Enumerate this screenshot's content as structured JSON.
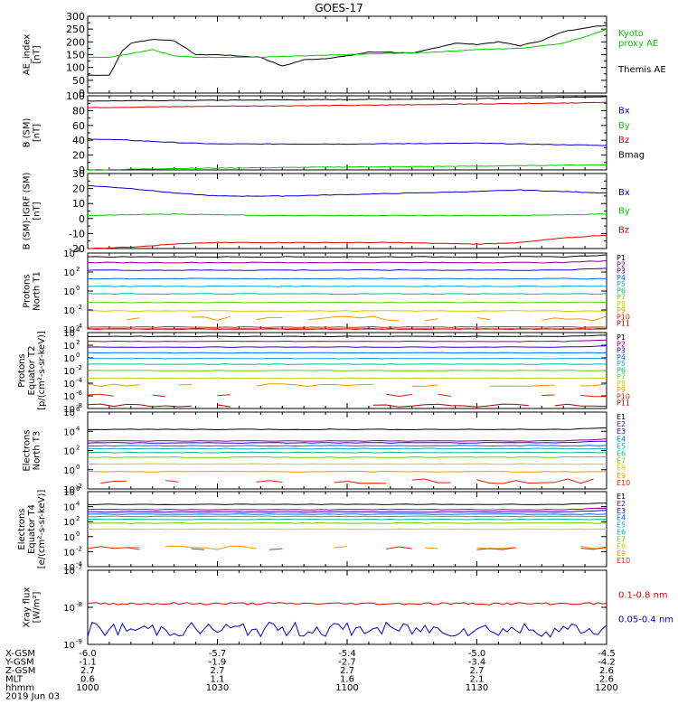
{
  "title": "GOES-17",
  "x_ticks": [
    "1000",
    "1030",
    "1100",
    "1130",
    "1200"
  ],
  "footer": {
    "rows": [
      {
        "label": "X-GSM",
        "values": [
          "-6.0",
          "-5.7",
          "-5.4",
          "-5.0",
          "-4.5"
        ]
      },
      {
        "label": "Y-GSM",
        "values": [
          "-1.1",
          "-1.9",
          "-2.7",
          "-3.4",
          "-4.2"
        ]
      },
      {
        "label": "Z-GSM",
        "values": [
          "2.7",
          "2.7",
          "2.7",
          "2.7",
          "2.6"
        ]
      },
      {
        "label": "MLT",
        "values": [
          "0.6",
          "1.1",
          "1.6",
          "2.1",
          "2.6"
        ]
      },
      {
        "label": "hhmm",
        "values": [
          "1000",
          "1030",
          "1100",
          "1130",
          "1200"
        ]
      }
    ],
    "date": "2019 Jun 03"
  },
  "colors": {
    "black": "#000000",
    "red": "#dd0000",
    "green": "#00cc00",
    "blue": "#0000cc",
    "p": [
      "#000000",
      "#8b0088",
      "#2a00cc",
      "#0066ee",
      "#00aacc",
      "#00bb88",
      "#66cc00",
      "#cccc00",
      "#ee9900",
      "#dd2200",
      "#aa0000"
    ],
    "e": [
      "#000000",
      "#8b0088",
      "#2a00cc",
      "#0066ee",
      "#00aacc",
      "#00bb88",
      "#66cc00",
      "#cccc00",
      "#ee9900",
      "#dd2200",
      "#aa0000"
    ]
  },
  "chart_data": [
    {
      "type": "line",
      "id": "ae",
      "ylabel": [
        "AE_index",
        "[nT]"
      ],
      "ylim": [
        0,
        300
      ],
      "yticks": [
        "0",
        "50",
        "100",
        "150",
        "200",
        "250",
        "300"
      ],
      "legend": [
        {
          "text": "Kyoto",
          "color": "#00cc00"
        },
        {
          "text": "proxy AE",
          "color": "#00cc00"
        },
        {
          "text": "Themis AE",
          "color": "#000000"
        }
      ],
      "series": [
        {
          "name": "Themis AE",
          "color": "#000000",
          "x": [
            0,
            5,
            8,
            10,
            15,
            20,
            25,
            30,
            35,
            40,
            45,
            50,
            55,
            60,
            65,
            70,
            75,
            80,
            85,
            90,
            95,
            100,
            105,
            110,
            115,
            120
          ],
          "values": [
            70,
            70,
            165,
            195,
            210,
            205,
            150,
            150,
            145,
            140,
            105,
            130,
            135,
            145,
            160,
            160,
            155,
            175,
            195,
            190,
            200,
            185,
            205,
            240,
            255,
            265
          ]
        },
        {
          "name": "Kyoto proxy AE",
          "color": "#00cc00",
          "x": [
            0,
            5,
            10,
            15,
            20,
            25,
            30,
            40,
            50,
            60,
            70,
            80,
            90,
            100,
            105,
            110,
            115,
            120
          ],
          "values": [
            140,
            140,
            155,
            170,
            145,
            140,
            140,
            140,
            145,
            150,
            155,
            160,
            170,
            175,
            185,
            195,
            220,
            250
          ]
        }
      ]
    },
    {
      "type": "line",
      "id": "bsm",
      "ylabel": [
        "B (SM)",
        "[nT]"
      ],
      "ylim": [
        0,
        100
      ],
      "yticks": [
        "0",
        "20",
        "40",
        "60",
        "80",
        "100"
      ],
      "legend": [
        {
          "text": "Bx",
          "color": "#0000cc"
        },
        {
          "text": "By",
          "color": "#00cc00"
        },
        {
          "text": "Bz",
          "color": "#dd0000"
        },
        {
          "text": "Bmag",
          "color": "#000000"
        }
      ],
      "series": [
        {
          "name": "Bmag",
          "color": "#000000",
          "x": [
            0,
            30,
            60,
            90,
            120
          ],
          "values": [
            93,
            94,
            95,
            96,
            99
          ]
        },
        {
          "name": "Bz",
          "color": "#dd0000",
          "x": [
            0,
            30,
            60,
            90,
            120
          ],
          "values": [
            84,
            86,
            87,
            89,
            91
          ]
        },
        {
          "name": "Bx",
          "color": "#0000cc",
          "x": [
            0,
            10,
            20,
            30,
            60,
            90,
            120
          ],
          "values": [
            42,
            40,
            37,
            35,
            35,
            36,
            33
          ]
        },
        {
          "name": "By",
          "color": "#00cc00",
          "x": [
            0,
            20,
            40,
            60,
            90,
            120
          ],
          "values": [
            0,
            2,
            3,
            4,
            5,
            7
          ]
        }
      ]
    },
    {
      "type": "line",
      "id": "bigrf",
      "ylabel": [
        "B (SM)-IGRF (SM)",
        "[nT]"
      ],
      "ylim": [
        -20,
        30
      ],
      "yticks": [
        "-20",
        "-10",
        "0",
        "10",
        "20",
        "30"
      ],
      "legend": [
        {
          "text": "Bx",
          "color": "#0000cc"
        },
        {
          "text": "By",
          "color": "#00cc00"
        },
        {
          "text": "Bz",
          "color": "#dd0000"
        }
      ],
      "series": [
        {
          "name": "Bx",
          "color": "#0000cc",
          "x": [
            0,
            10,
            20,
            30,
            45,
            60,
            75,
            90,
            100,
            110,
            120
          ],
          "values": [
            22,
            20,
            17,
            15,
            15,
            16,
            17,
            18,
            19,
            18,
            17
          ]
        },
        {
          "name": "By",
          "color": "#00cc00",
          "x": [
            0,
            20,
            40,
            60,
            80,
            100,
            120
          ],
          "values": [
            2,
            3,
            2,
            2,
            2,
            2,
            3
          ]
        },
        {
          "name": "Bz",
          "color": "#dd0000",
          "x": [
            0,
            10,
            20,
            30,
            50,
            70,
            90,
            100,
            110,
            120
          ],
          "values": [
            -20,
            -19,
            -17,
            -16,
            -16,
            -16,
            -17,
            -16,
            -13,
            -11
          ]
        }
      ]
    },
    {
      "type": "line",
      "id": "pn",
      "log": true,
      "ylabel": [
        "Protons",
        "North T1"
      ],
      "ylim": [
        -4,
        4
      ],
      "yticks": [
        {
          "exp": 4,
          "label": "10"
        },
        {
          "exp": 2,
          "label": "10"
        },
        {
          "exp": 0,
          "label": "10"
        },
        {
          "exp": -2,
          "label": "10"
        },
        {
          "exp": -4,
          "label": "10"
        }
      ],
      "labels": [
        "P1",
        "P2",
        "P3",
        "P4",
        "P5",
        "P6",
        "P7",
        "P8",
        "P9",
        "P10",
        "P11"
      ],
      "levels": [
        3.6,
        3.0,
        2.2,
        1.3,
        0.5,
        -0.3,
        -1.2,
        -2.1,
        -2.9,
        -3.8,
        -4.0
      ]
    },
    {
      "type": "line",
      "id": "pe",
      "log": true,
      "ylabel": [
        "Protons",
        "Equator T2",
        "[p/(cm²-s-sr-keV)]"
      ],
      "ylim": [
        -8,
        4
      ],
      "yticks": [
        {
          "exp": 4,
          "label": "10"
        },
        {
          "exp": 2,
          "label": "10"
        },
        {
          "exp": 0,
          "label": "10"
        },
        {
          "exp": -2,
          "label": "10"
        },
        {
          "exp": -4,
          "label": "10"
        },
        {
          "exp": -6,
          "label": "10"
        },
        {
          "exp": -8,
          "label": "10"
        }
      ],
      "labels": [
        "P1",
        "P2",
        "P3",
        "P4",
        "P5",
        "P6",
        "P7",
        "P8",
        "P9",
        "P10",
        "P11"
      ],
      "levels": [
        3.4,
        2.6,
        1.7,
        0.8,
        -0.1,
        -1.0,
        -2.0,
        -3.2,
        -4.3,
        -6.0,
        -7.5
      ]
    },
    {
      "type": "line",
      "id": "en",
      "log": true,
      "ylabel": [
        "Electrons",
        "North T3"
      ],
      "ylim": [
        -2,
        6
      ],
      "yticks": [
        {
          "exp": 6,
          "label": "10"
        },
        {
          "exp": 4,
          "label": "10"
        },
        {
          "exp": 2,
          "label": "10"
        },
        {
          "exp": 0,
          "label": "10"
        },
        {
          "exp": -2,
          "label": "10"
        }
      ],
      "labels": [
        "E1",
        "E2",
        "E3",
        "E4",
        "E5",
        "E6",
        "E7",
        "E8",
        "E9",
        "E10"
      ],
      "levels": [
        4.2,
        3.0,
        2.8,
        2.5,
        2.2,
        1.8,
        1.3,
        0.6,
        -0.2,
        -1.2
      ]
    },
    {
      "type": "line",
      "id": "ee",
      "log": true,
      "ylabel": [
        "Electrons",
        "Equator T4",
        "[e/(cm²-s-sr-keV)]"
      ],
      "ylim": [
        -4,
        6
      ],
      "yticks": [
        {
          "exp": 6,
          "label": "10"
        },
        {
          "exp": 4,
          "label": "10"
        },
        {
          "exp": 2,
          "label": "10"
        },
        {
          "exp": 0,
          "label": "10"
        },
        {
          "exp": -2,
          "label": "10"
        },
        {
          "exp": -4,
          "label": "10"
        }
      ],
      "labels": [
        "E1",
        "E2",
        "E3",
        "E4",
        "E5",
        "E6",
        "E7",
        "E8",
        "E9",
        "E10"
      ],
      "levels": [
        4.3,
        3.6,
        3.3,
        3.0,
        2.7,
        2.3,
        1.8,
        1.0,
        -1.5,
        -1.5
      ]
    },
    {
      "type": "line",
      "id": "xray",
      "log": true,
      "ylabel": [
        "Xray flux",
        "[W/m²]"
      ],
      "ylim": [
        -9,
        -7
      ],
      "yticks": [
        {
          "exp": -7,
          "label": "10"
        },
        {
          "exp": -8,
          "label": "10"
        },
        {
          "exp": -9,
          "label": "10"
        }
      ],
      "legend": [
        {
          "text": "0.1-0.8 nm",
          "color": "#dd0000"
        },
        {
          "text": "0.05-0.4 nm",
          "color": "#0000cc"
        }
      ],
      "series": [
        {
          "name": "0.1-0.8 nm",
          "color": "#dd0000",
          "level": -7.9
        },
        {
          "name": "0.05-0.4 nm",
          "color": "#0000cc",
          "level": -8.6
        }
      ]
    }
  ]
}
